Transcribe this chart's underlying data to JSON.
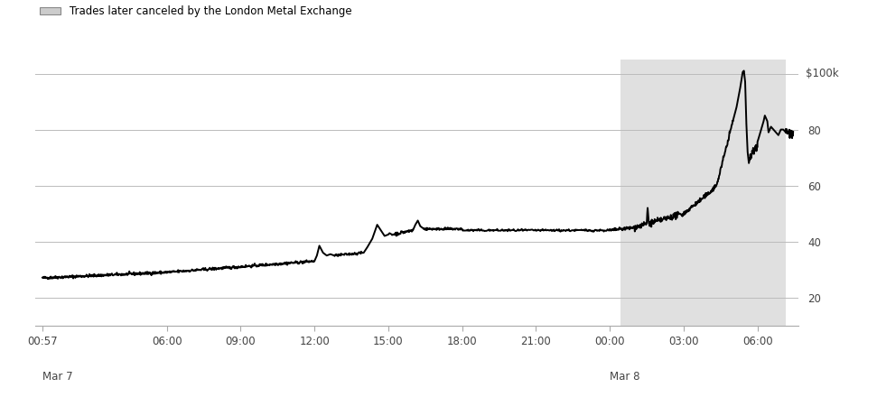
{
  "legend_label": "Trades later canceled by the London Metal Exchange",
  "yticks": [
    20,
    40,
    60,
    80,
    100
  ],
  "ylim": [
    10,
    105
  ],
  "background_color": "#ffffff",
  "shaded_region_color": "#cccccc",
  "shaded_region_alpha": 0.6,
  "line_color": "#000000",
  "line_width": 1.4,
  "xtick_labels": [
    "00:57",
    "06:00",
    "09:00",
    "12:00",
    "15:00",
    "18:00",
    "21:00",
    "00:00",
    "03:00",
    "06:00"
  ],
  "grid_color": "#bbbbbb",
  "grid_alpha": 1.0,
  "grid_linewidth": 0.7,
  "shaded_start_hour": 23.5,
  "shaded_end_hour": 30.2,
  "xlim_left": -0.3,
  "xlim_right": 30.7
}
